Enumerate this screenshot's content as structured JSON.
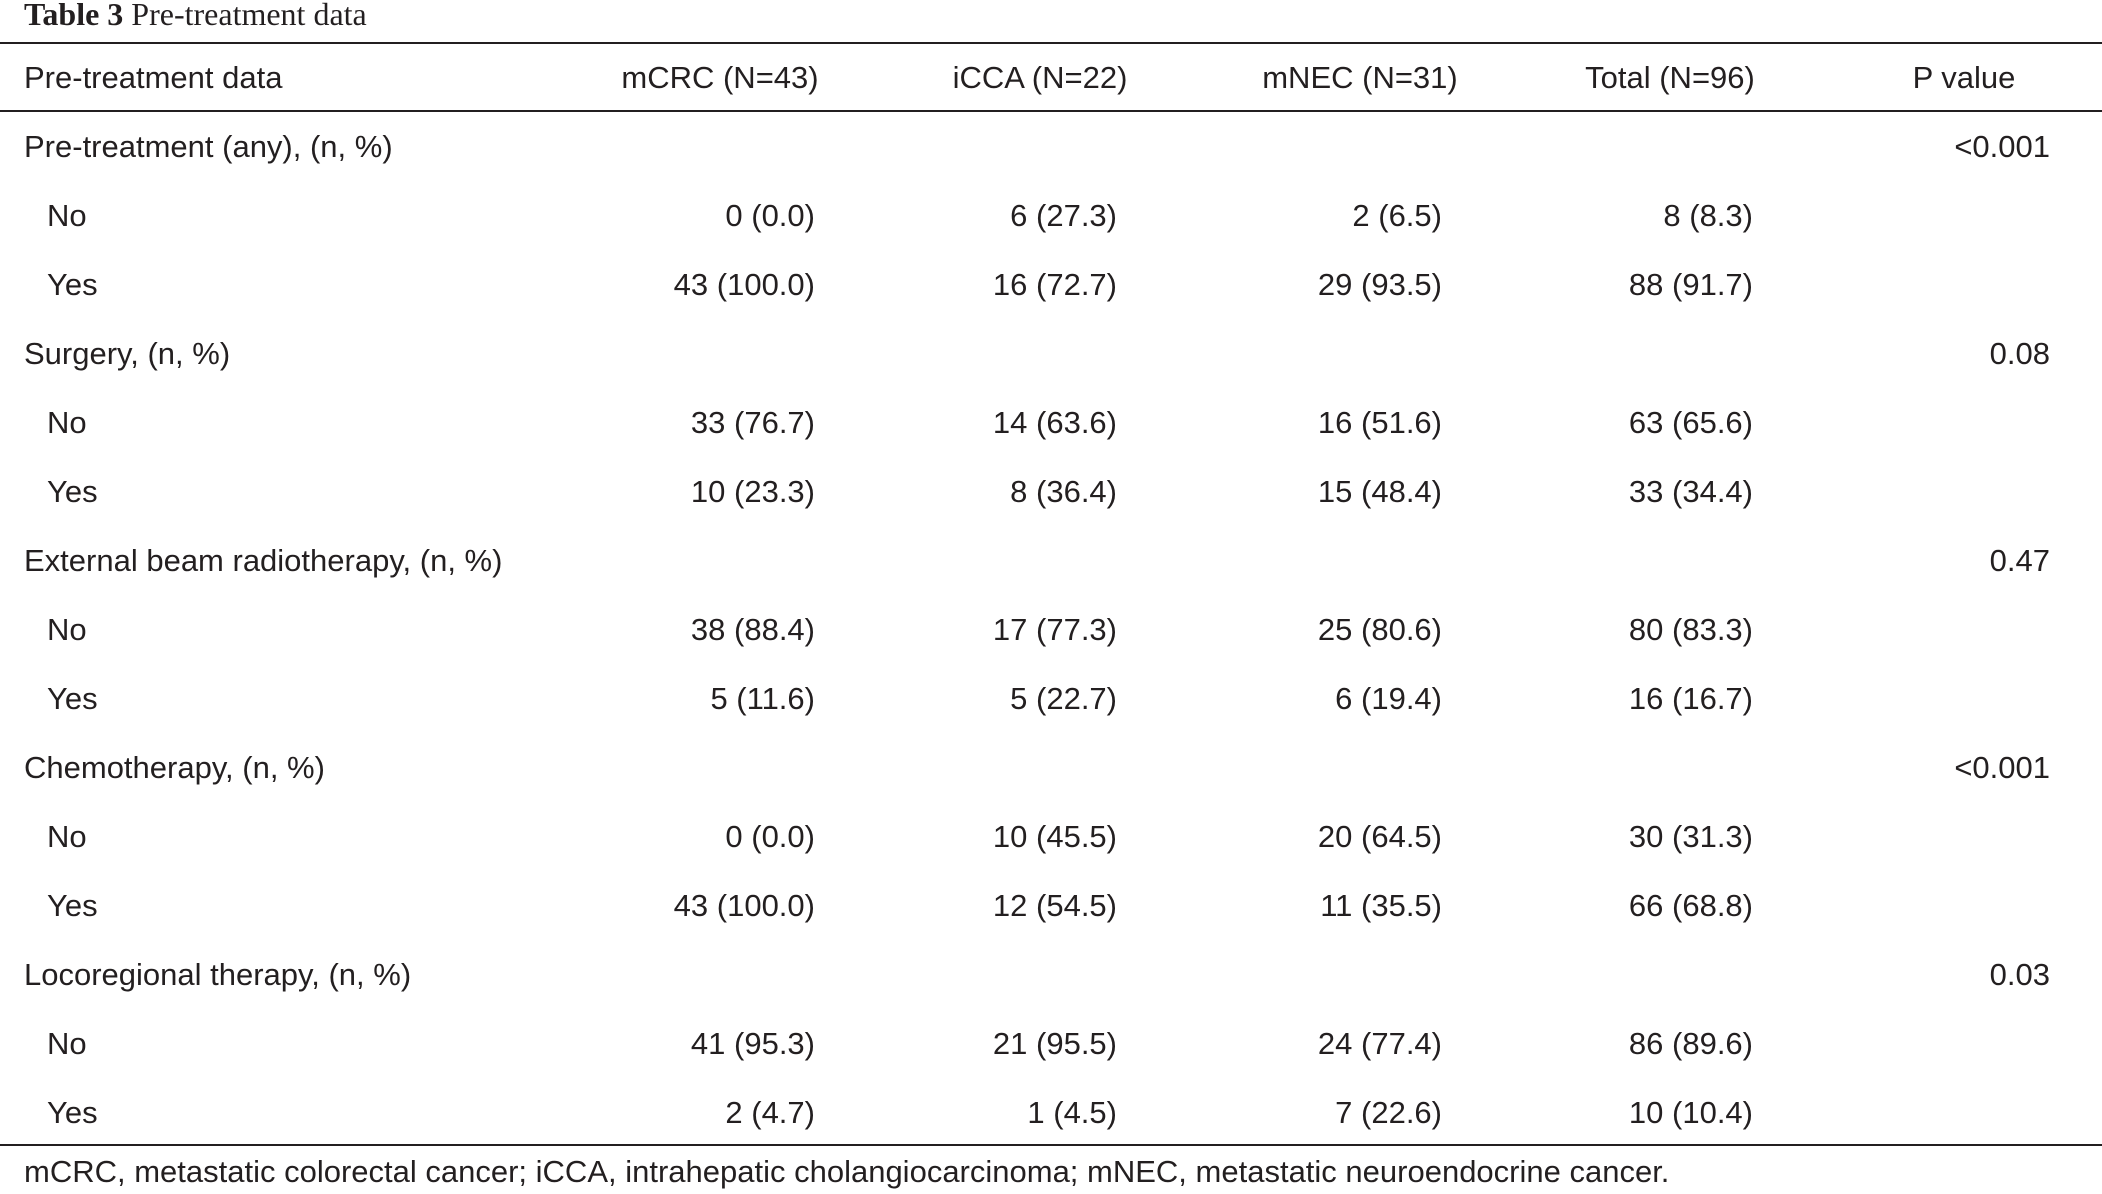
{
  "caption": {
    "label": "Table 3",
    "title": "Pre-treatment data"
  },
  "columns": [
    "Pre-treatment data",
    "mCRC (N=43)",
    "iCCA (N=22)",
    "mNEC (N=31)",
    "Total (N=96)",
    "P value"
  ],
  "rows": [
    {
      "label": "Pre-treatment (any), (n, %)",
      "mcrc": "",
      "icca": "",
      "mnec": "",
      "total": "",
      "p": "<0.001"
    },
    {
      "label": "No",
      "mcrc": "0 (0.0)",
      "icca": "6 (27.3)",
      "mnec": "2 (6.5)",
      "total": "8 (8.3)",
      "p": ""
    },
    {
      "label": "Yes",
      "mcrc": "43 (100.0)",
      "icca": "16 (72.7)",
      "mnec": "29 (93.5)",
      "total": "88 (91.7)",
      "p": ""
    },
    {
      "label": "Surgery, (n, %)",
      "mcrc": "",
      "icca": "",
      "mnec": "",
      "total": "",
      "p": "0.08"
    },
    {
      "label": "No",
      "mcrc": "33 (76.7)",
      "icca": "14 (63.6)",
      "mnec": "16 (51.6)",
      "total": "63 (65.6)",
      "p": ""
    },
    {
      "label": "Yes",
      "mcrc": "10 (23.3)",
      "icca": "8 (36.4)",
      "mnec": "15 (48.4)",
      "total": "33 (34.4)",
      "p": ""
    },
    {
      "label": "External beam radiotherapy, (n, %)",
      "mcrc": "",
      "icca": "",
      "mnec": "",
      "total": "",
      "p": "0.47"
    },
    {
      "label": "No",
      "mcrc": "38 (88.4)",
      "icca": "17 (77.3)",
      "mnec": "25 (80.6)",
      "total": "80 (83.3)",
      "p": ""
    },
    {
      "label": "Yes",
      "mcrc": "5 (11.6)",
      "icca": "5 (22.7)",
      "mnec": "6 (19.4)",
      "total": "16 (16.7)",
      "p": ""
    },
    {
      "label": "Chemotherapy, (n, %)",
      "mcrc": "",
      "icca": "",
      "mnec": "",
      "total": "",
      "p": "<0.001"
    },
    {
      "label": "No",
      "mcrc": "0 (0.0)",
      "icca": "10 (45.5)",
      "mnec": "20 (64.5)",
      "total": "30 (31.3)",
      "p": ""
    },
    {
      "label": "Yes",
      "mcrc": "43 (100.0)",
      "icca": "12 (54.5)",
      "mnec": "11 (35.5)",
      "total": "66 (68.8)",
      "p": ""
    },
    {
      "label": "Locoregional therapy, (n, %)",
      "mcrc": "",
      "icca": "",
      "mnec": "",
      "total": "",
      "p": "0.03"
    },
    {
      "label": "No",
      "mcrc": "41 (95.3)",
      "icca": "21 (95.5)",
      "mnec": "24 (77.4)",
      "total": "86 (89.6)",
      "p": ""
    },
    {
      "label": "Yes",
      "mcrc": "2 (4.7)",
      "icca": "1 (4.5)",
      "mnec": "7 (22.6)",
      "total": "10 (10.4)",
      "p": ""
    }
  ],
  "footnote": "mCRC, metastatic colorectal cancer; iCCA, intrahepatic cholangiocarcinoma; mNEC, metastatic neuroendocrine cancer."
}
